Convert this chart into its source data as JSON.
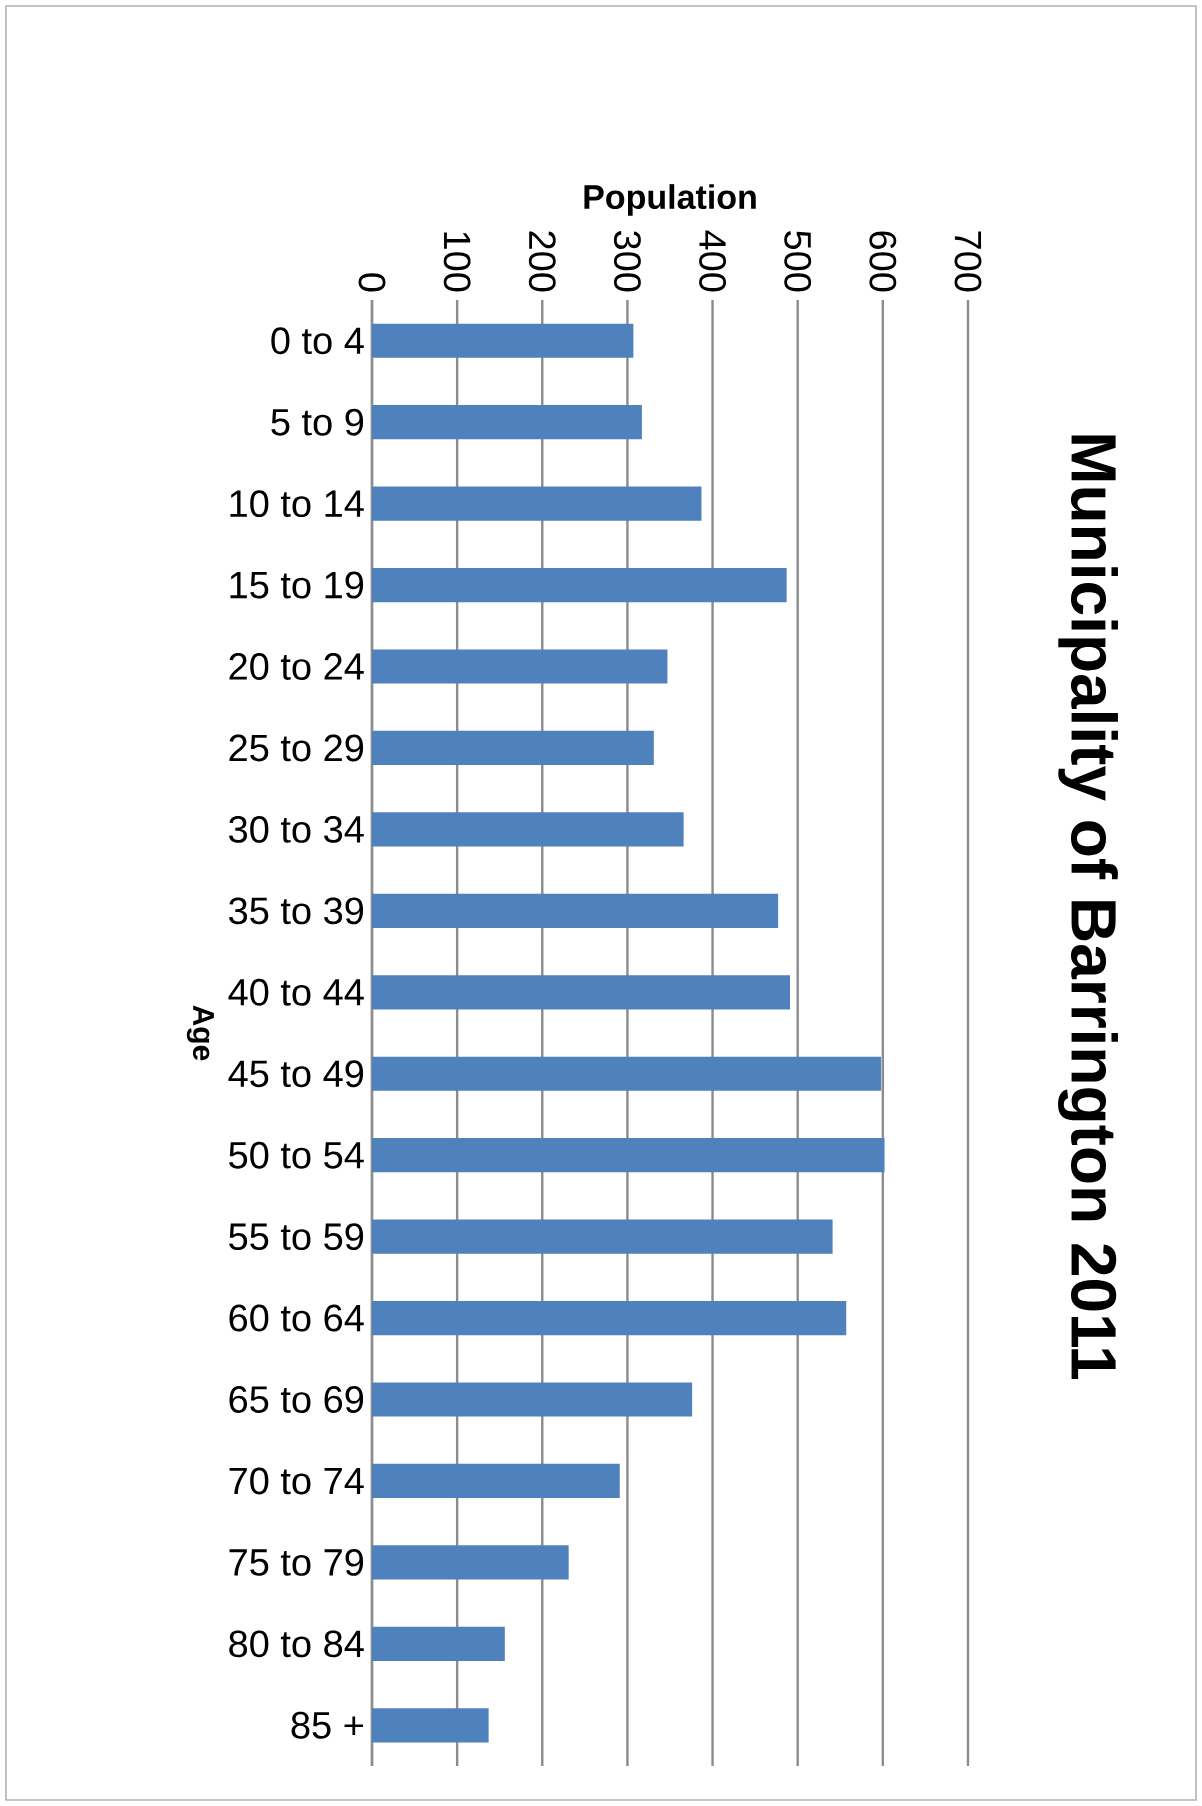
{
  "chart_data": {
    "type": "bar",
    "orientation": "horizontal",
    "title": "Municipality of Barrington 2011",
    "xlabel": "Population",
    "ylabel": "Age",
    "categories": [
      "0 to 4",
      "5 to 9",
      "10 to 14",
      "15 to 19",
      "20 to 24",
      "25 to 29",
      "30 to 34",
      "35 to 39",
      "40 to 44",
      "45 to 49",
      "50 to 54",
      "55 to 59",
      "60 to 64",
      "65 to 69",
      "70 to 74",
      "75 to 79",
      "80 to 84",
      "85 +"
    ],
    "values": [
      307,
      317,
      387,
      487,
      347,
      331,
      366,
      477,
      491,
      598,
      602,
      541,
      557,
      376,
      291,
      231,
      156,
      137
    ],
    "color": "#4f81bd",
    "xlim": [
      0,
      700
    ],
    "xticks": [
      0,
      100,
      200,
      300,
      400,
      500,
      600,
      700
    ],
    "grid": "x"
  }
}
